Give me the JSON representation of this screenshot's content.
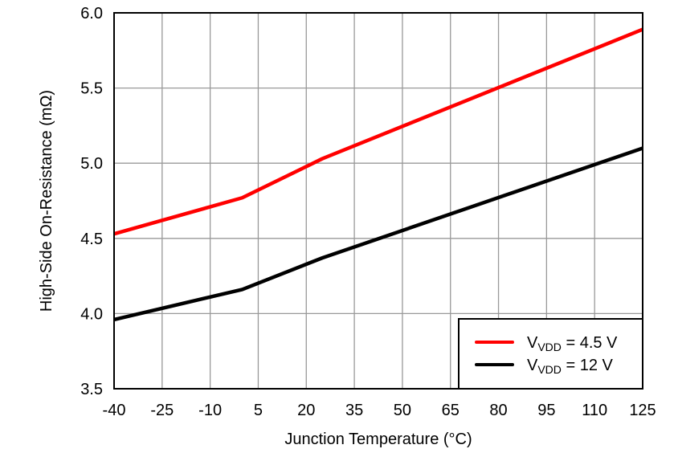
{
  "chart_data": {
    "type": "line",
    "title": "",
    "xlabel": "Junction Temperature (°C)",
    "ylabel": "High-Side On-Resistance  (mΩ)",
    "xlim": [
      -40,
      125
    ],
    "ylim": [
      3.5,
      6.0
    ],
    "x_ticks": [
      "-40",
      "-25",
      "-10",
      "5",
      "20",
      "35",
      "50",
      "65",
      "80",
      "95",
      "110",
      "125"
    ],
    "y_ticks": [
      "3.5",
      "4.0",
      "4.5",
      "5.0",
      "5.5",
      "6.0"
    ],
    "grid": true,
    "legend_position": "bottom-right",
    "series": [
      {
        "name": "V",
        "name_sub": "VDD",
        "name_suffix": " = 4.5 V",
        "color": "#ff0000",
        "x": [
          -40,
          0,
          25,
          125
        ],
        "y": [
          4.53,
          4.77,
          5.03,
          5.89
        ]
      },
      {
        "name": "V",
        "name_sub": "VDD",
        "name_suffix": " = 12 V",
        "color": "#000000",
        "x": [
          -40,
          0,
          25,
          125
        ],
        "y": [
          3.96,
          4.16,
          4.37,
          5.1
        ]
      }
    ]
  }
}
